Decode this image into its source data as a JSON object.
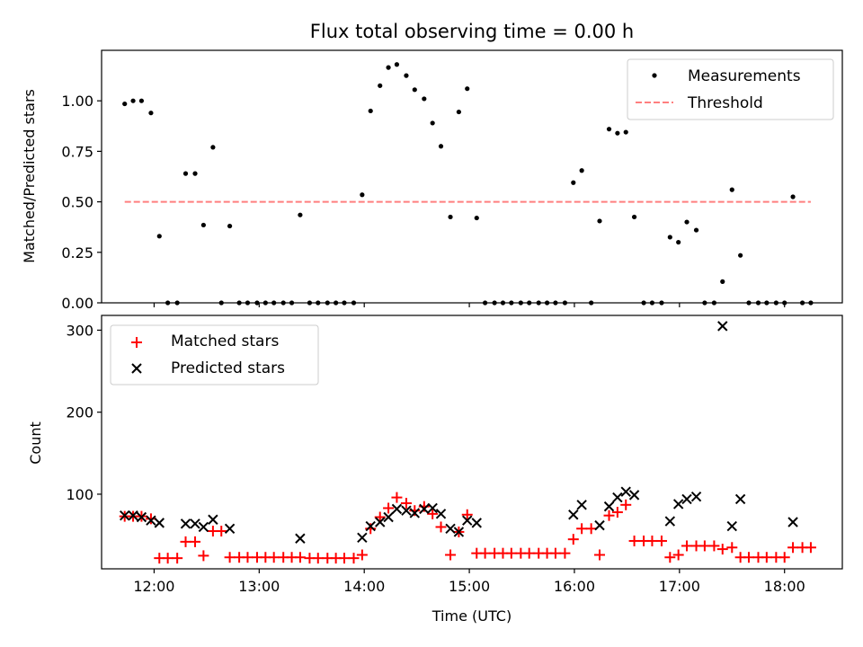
{
  "chart_data": [
    {
      "type": "scatter",
      "title": "Flux total observing time = 0.00 h",
      "xlabel": "",
      "ylabel": "Matched/Predicted stars",
      "xlim": [
        11.5,
        18.55
      ],
      "ylim": [
        0,
        1.25
      ],
      "xticks": [
        {
          "value": 12,
          "label": "12:00"
        },
        {
          "value": 13,
          "label": "13:00"
        },
        {
          "value": 14,
          "label": "14:00"
        },
        {
          "value": 15,
          "label": "15:00"
        },
        {
          "value": 16,
          "label": "16:00"
        },
        {
          "value": 17,
          "label": "17:00"
        },
        {
          "value": 18,
          "label": "18:00"
        }
      ],
      "yticks": [
        {
          "value": 0.0,
          "label": "0.00"
        },
        {
          "value": 0.25,
          "label": "0.25"
        },
        {
          "value": 0.5,
          "label": "0.50"
        },
        {
          "value": 0.75,
          "label": "0.75"
        },
        {
          "value": 1.0,
          "label": "1.00"
        }
      ],
      "legend_position": "top-right",
      "series": [
        {
          "name": "Measurements",
          "marker": "dot",
          "color": "#000000",
          "x": [
            11.72,
            11.8,
            11.88,
            11.97,
            12.05,
            12.13,
            12.22,
            12.3,
            12.39,
            12.47,
            12.56,
            12.64,
            12.72,
            12.81,
            12.89,
            12.98,
            13.06,
            13.14,
            13.23,
            13.31,
            13.39,
            13.48,
            13.56,
            13.65,
            13.73,
            13.81,
            13.9,
            13.98,
            14.06,
            14.15,
            14.23,
            14.31,
            14.4,
            14.48,
            14.57,
            14.65,
            14.73,
            14.82,
            14.9,
            14.98,
            15.07,
            15.15,
            15.24,
            15.32,
            15.4,
            15.49,
            15.57,
            15.66,
            15.74,
            15.82,
            15.91,
            15.99,
            16.07,
            16.16,
            16.24,
            16.33,
            16.41,
            16.49,
            16.57,
            16.66,
            16.74,
            16.83,
            16.91,
            16.99,
            17.07,
            17.16,
            17.24,
            17.33,
            17.41,
            17.5,
            17.58,
            17.66,
            17.75,
            17.83,
            17.92,
            18.0,
            18.08,
            18.17,
            18.25
          ],
          "y": [
            0.985,
            1.0,
            1.0,
            0.94,
            0.33,
            0.0,
            0.0,
            0.64,
            0.64,
            0.385,
            0.77,
            0.0,
            0.38,
            0.0,
            0.0,
            0.0,
            0.0,
            0.0,
            0.0,
            0.0,
            0.435,
            0.0,
            0.0,
            0.0,
            0.0,
            0.0,
            0.0,
            0.535,
            0.95,
            1.075,
            1.165,
            1.18,
            1.125,
            1.055,
            1.01,
            0.89,
            0.775,
            0.425,
            0.945,
            1.06,
            0.42,
            0.0,
            0.0,
            0.0,
            0.0,
            0.0,
            0.0,
            0.0,
            0.0,
            0.0,
            0.0,
            0.595,
            0.655,
            0.0,
            0.405,
            0.86,
            0.84,
            0.845,
            0.425,
            0.0,
            0.0,
            0.0,
            0.325,
            0.3,
            0.4,
            0.36,
            0.0,
            0.0,
            0.105,
            0.56,
            0.235,
            0.0,
            0.0,
            0.0,
            0.0,
            0.0,
            0.525,
            0.0,
            0.0
          ]
        },
        {
          "name": "Threshold",
          "marker": "dashed-line",
          "color": "#ff7f7f",
          "x": [
            11.72,
            18.25
          ],
          "y": [
            0.5,
            0.5
          ]
        }
      ]
    },
    {
      "type": "scatter",
      "title": "",
      "xlabel": "Time (UTC)",
      "ylabel": "Count",
      "xlim": [
        11.5,
        18.55
      ],
      "ylim": [
        9,
        318
      ],
      "xticks": [
        {
          "value": 12,
          "label": "12:00"
        },
        {
          "value": 13,
          "label": "13:00"
        },
        {
          "value": 14,
          "label": "14:00"
        },
        {
          "value": 15,
          "label": "15:00"
        },
        {
          "value": 16,
          "label": "16:00"
        },
        {
          "value": 17,
          "label": "17:00"
        },
        {
          "value": 18,
          "label": "18:00"
        }
      ],
      "yticks": [
        {
          "value": 100,
          "label": "100"
        },
        {
          "value": 200,
          "label": "200"
        },
        {
          "value": 300,
          "label": "300"
        }
      ],
      "legend_position": "top-left",
      "series": [
        {
          "name": "Matched stars",
          "marker": "plus",
          "color": "#ff0000",
          "x": [
            11.72,
            11.8,
            11.88,
            11.97,
            12.05,
            12.13,
            12.22,
            12.3,
            12.39,
            12.47,
            12.56,
            12.64,
            12.72,
            12.81,
            12.89,
            12.98,
            13.06,
            13.14,
            13.23,
            13.31,
            13.39,
            13.48,
            13.56,
            13.65,
            13.73,
            13.81,
            13.9,
            13.98,
            14.06,
            14.15,
            14.23,
            14.31,
            14.4,
            14.48,
            14.57,
            14.65,
            14.73,
            14.82,
            14.9,
            14.98,
            15.07,
            15.15,
            15.24,
            15.32,
            15.4,
            15.49,
            15.57,
            15.66,
            15.74,
            15.82,
            15.91,
            15.99,
            16.07,
            16.16,
            16.24,
            16.33,
            16.41,
            16.49,
            16.57,
            16.66,
            16.74,
            16.83,
            16.91,
            16.99,
            17.07,
            17.16,
            17.24,
            17.33,
            17.41,
            17.5,
            17.58,
            17.66,
            17.75,
            17.83,
            17.92,
            18.0,
            18.08,
            18.17,
            18.25
          ],
          "y": [
            73,
            73,
            73,
            70,
            22,
            22,
            22,
            42,
            42,
            25,
            55,
            55,
            23,
            23,
            23,
            23,
            23,
            23,
            23,
            23,
            23,
            22,
            22,
            22,
            22,
            22,
            22,
            26,
            58,
            72,
            83,
            96,
            89,
            80,
            85,
            76,
            60,
            26,
            54,
            75,
            28,
            28,
            28,
            28,
            28,
            28,
            28,
            28,
            28,
            28,
            28,
            45,
            58,
            58,
            26,
            74,
            78,
            87,
            43,
            43,
            43,
            43,
            23,
            26,
            37,
            37,
            37,
            37,
            33,
            35,
            23,
            23,
            23,
            23,
            23,
            23,
            35,
            35,
            35
          ]
        },
        {
          "name": "Predicted stars",
          "marker": "x",
          "color": "#000000",
          "x": [
            11.72,
            11.8,
            11.88,
            11.97,
            12.05,
            12.3,
            12.39,
            12.47,
            12.56,
            12.72,
            13.39,
            13.98,
            14.06,
            14.15,
            14.23,
            14.31,
            14.4,
            14.48,
            14.57,
            14.65,
            14.73,
            14.82,
            14.9,
            14.98,
            15.07,
            15.99,
            16.07,
            16.24,
            16.33,
            16.41,
            16.49,
            16.57,
            16.91,
            16.99,
            17.07,
            17.16,
            17.41,
            17.5,
            17.58,
            18.08
          ],
          "y": [
            74,
            74,
            72,
            68,
            65,
            64,
            64,
            60,
            69,
            58,
            46,
            47,
            61,
            66,
            72,
            82,
            80,
            77,
            82,
            83,
            76,
            58,
            54,
            68,
            65,
            75,
            87,
            62,
            85,
            96,
            103,
            99,
            67,
            88,
            94,
            97,
            305,
            61,
            94,
            66
          ]
        }
      ]
    }
  ]
}
